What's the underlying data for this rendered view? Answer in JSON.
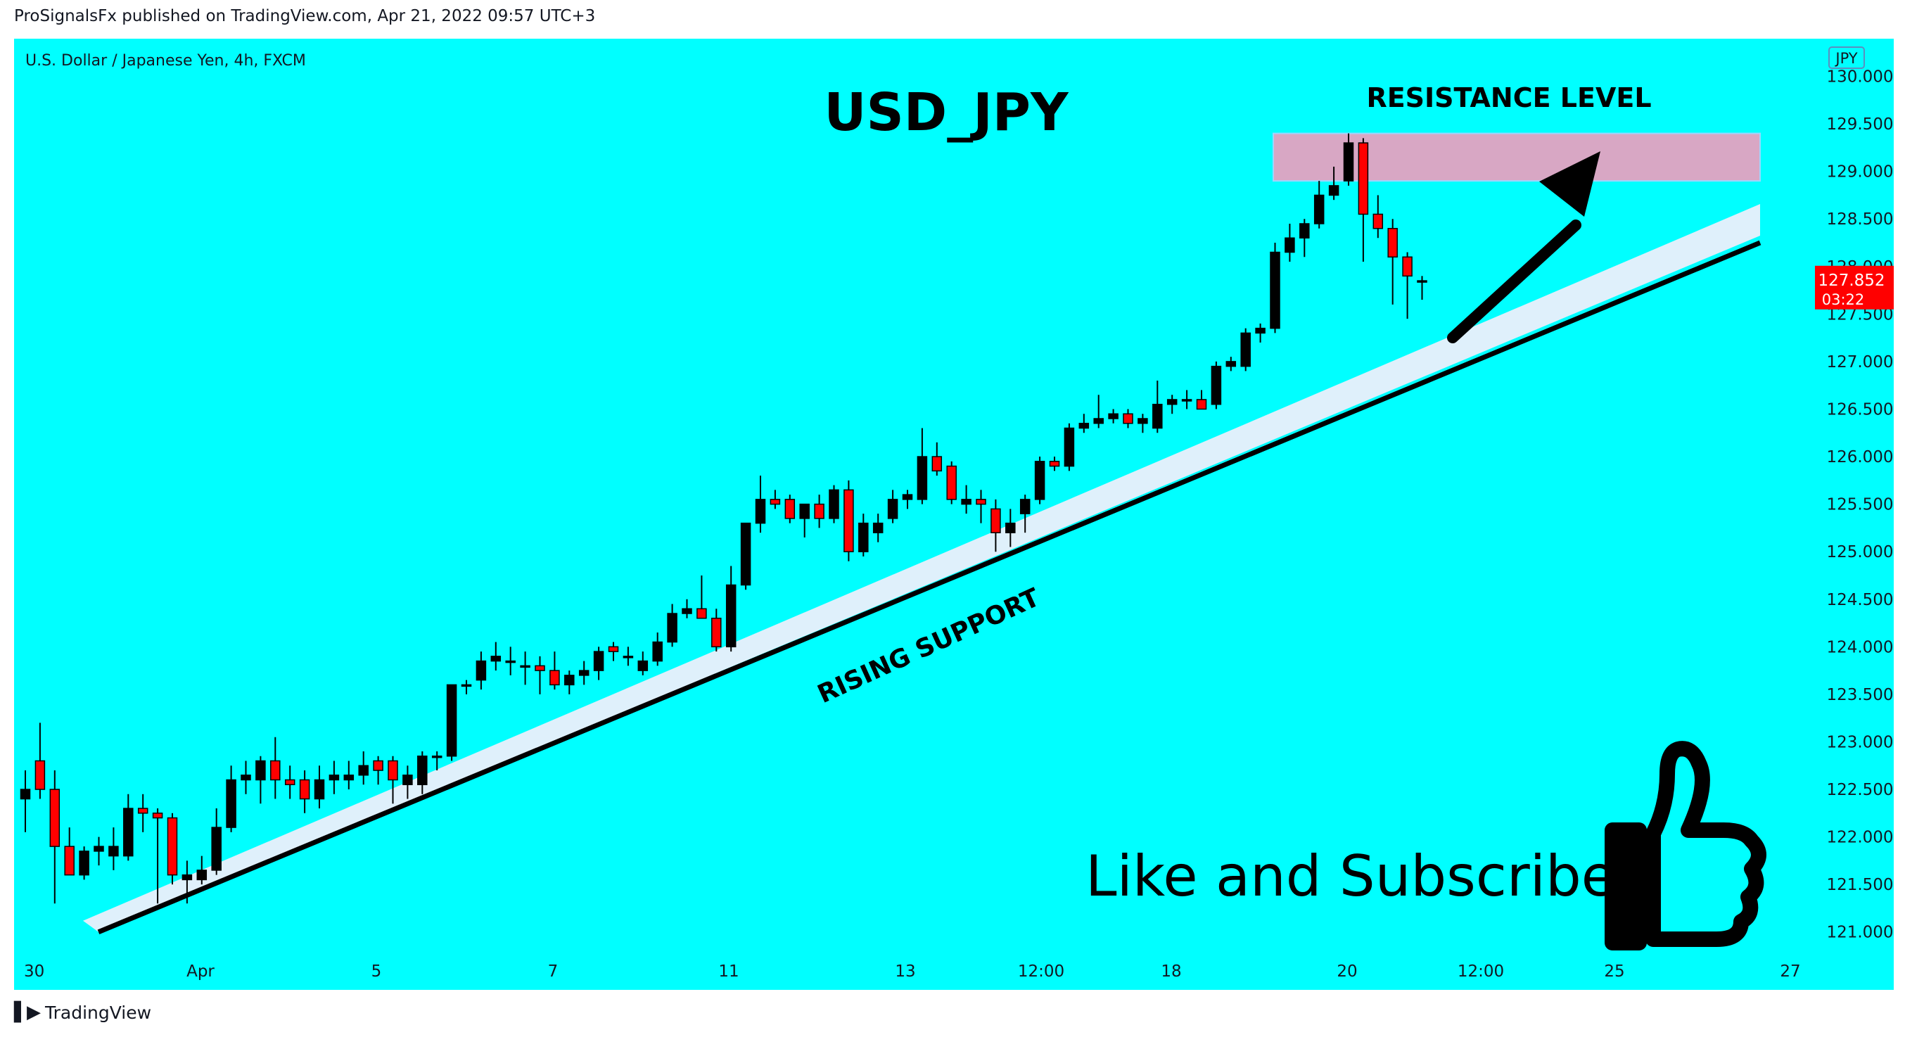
{
  "header": {
    "publisher_line": "ProSignalsFx published on TradingView.com, Apr 21, 2022 09:57 UTC+3"
  },
  "footer": {
    "brand": "TradingView"
  },
  "chart_data": {
    "type": "candlestick",
    "symbol_label": "U.S. Dollar / Japanese Yen, 4h, FXCM",
    "currency_badge": "JPY",
    "title": "USD_JPY",
    "price_axis": {
      "ylim": [
        120.85,
        130.1
      ],
      "ticks": [
        "121.000",
        "121.500",
        "122.000",
        "122.500",
        "123.000",
        "123.500",
        "124.000",
        "124.500",
        "125.000",
        "125.500",
        "126.000",
        "126.500",
        "127.000",
        "127.500",
        "128.000",
        "128.500",
        "129.000",
        "129.500",
        "130.000"
      ]
    },
    "time_axis": {
      "labels": [
        "30",
        "Apr",
        "5",
        "7",
        "11",
        "13",
        "12:00",
        "18",
        "20",
        "12:00",
        "25",
        "27"
      ]
    },
    "last_price": {
      "value": "127.852",
      "countdown": "03:22",
      "color": "#ff0000"
    },
    "colors": {
      "background": "#00ffff",
      "bull_candle": "#000000",
      "bear_candle": "#ff0000",
      "resistance_zone": "#d8a7c4",
      "support_band": "#dff0fb",
      "support_line": "#000000"
    },
    "annotations": {
      "resistance_label": "RESISTANCE LEVEL",
      "resistance_zone": {
        "from": 128.9,
        "to": 129.4
      },
      "support_label": "RISING SUPPORT",
      "support_line": {
        "start_price": 121.0,
        "end_price": 128.25
      },
      "cta": "Like and Subscribe"
    },
    "candles": [
      {
        "o": 122.4,
        "h": 122.7,
        "l": 122.05,
        "c": 122.5
      },
      {
        "o": 122.8,
        "h": 123.2,
        "l": 122.4,
        "c": 122.5
      },
      {
        "o": 122.5,
        "h": 122.7,
        "l": 121.3,
        "c": 121.9
      },
      {
        "o": 121.9,
        "h": 122.1,
        "l": 121.6,
        "c": 121.6
      },
      {
        "o": 121.6,
        "h": 121.9,
        "l": 121.55,
        "c": 121.85
      },
      {
        "o": 121.85,
        "h": 122.0,
        "l": 121.7,
        "c": 121.9
      },
      {
        "o": 121.8,
        "h": 122.1,
        "l": 121.65,
        "c": 121.9
      },
      {
        "o": 121.8,
        "h": 122.45,
        "l": 121.75,
        "c": 122.3
      },
      {
        "o": 122.3,
        "h": 122.45,
        "l": 122.05,
        "c": 122.25
      },
      {
        "o": 122.25,
        "h": 122.3,
        "l": 121.3,
        "c": 122.2
      },
      {
        "o": 122.2,
        "h": 122.25,
        "l": 121.5,
        "c": 121.6
      },
      {
        "o": 121.55,
        "h": 121.75,
        "l": 121.3,
        "c": 121.6
      },
      {
        "o": 121.55,
        "h": 121.8,
        "l": 121.5,
        "c": 121.65
      },
      {
        "o": 121.65,
        "h": 122.3,
        "l": 121.6,
        "c": 122.1
      },
      {
        "o": 122.1,
        "h": 122.75,
        "l": 122.05,
        "c": 122.6
      },
      {
        "o": 122.6,
        "h": 122.8,
        "l": 122.45,
        "c": 122.65
      },
      {
        "o": 122.6,
        "h": 122.85,
        "l": 122.35,
        "c": 122.8
      },
      {
        "o": 122.8,
        "h": 123.05,
        "l": 122.4,
        "c": 122.6
      },
      {
        "o": 122.6,
        "h": 122.75,
        "l": 122.4,
        "c": 122.55
      },
      {
        "o": 122.6,
        "h": 122.7,
        "l": 122.25,
        "c": 122.4
      },
      {
        "o": 122.4,
        "h": 122.75,
        "l": 122.3,
        "c": 122.6
      },
      {
        "o": 122.6,
        "h": 122.8,
        "l": 122.45,
        "c": 122.65
      },
      {
        "o": 122.6,
        "h": 122.8,
        "l": 122.5,
        "c": 122.65
      },
      {
        "o": 122.65,
        "h": 122.9,
        "l": 122.55,
        "c": 122.75
      },
      {
        "o": 122.8,
        "h": 122.85,
        "l": 122.55,
        "c": 122.7
      },
      {
        "o": 122.8,
        "h": 122.85,
        "l": 122.35,
        "c": 122.6
      },
      {
        "o": 122.55,
        "h": 122.75,
        "l": 122.4,
        "c": 122.65
      },
      {
        "o": 122.55,
        "h": 122.9,
        "l": 122.45,
        "c": 122.85
      },
      {
        "o": 122.85,
        "h": 122.9,
        "l": 122.7,
        "c": 122.85
      },
      {
        "o": 122.85,
        "h": 123.6,
        "l": 122.8,
        "c": 123.6
      },
      {
        "o": 123.6,
        "h": 123.65,
        "l": 123.5,
        "c": 123.6
      },
      {
        "o": 123.65,
        "h": 123.95,
        "l": 123.55,
        "c": 123.85
      },
      {
        "o": 123.85,
        "h": 124.05,
        "l": 123.75,
        "c": 123.9
      },
      {
        "o": 123.85,
        "h": 124.0,
        "l": 123.7,
        "c": 123.85
      },
      {
        "o": 123.8,
        "h": 123.95,
        "l": 123.6,
        "c": 123.8
      },
      {
        "o": 123.8,
        "h": 123.9,
        "l": 123.5,
        "c": 123.75
      },
      {
        "o": 123.75,
        "h": 123.95,
        "l": 123.55,
        "c": 123.6
      },
      {
        "o": 123.6,
        "h": 123.75,
        "l": 123.5,
        "c": 123.7
      },
      {
        "o": 123.7,
        "h": 123.85,
        "l": 123.6,
        "c": 123.75
      },
      {
        "o": 123.75,
        "h": 124.0,
        "l": 123.65,
        "c": 123.95
      },
      {
        "o": 124.0,
        "h": 124.05,
        "l": 123.85,
        "c": 123.95
      },
      {
        "o": 123.9,
        "h": 124.0,
        "l": 123.8,
        "c": 123.9
      },
      {
        "o": 123.75,
        "h": 123.95,
        "l": 123.7,
        "c": 123.85
      },
      {
        "o": 123.85,
        "h": 124.15,
        "l": 123.8,
        "c": 124.05
      },
      {
        "o": 124.05,
        "h": 124.45,
        "l": 124.0,
        "c": 124.35
      },
      {
        "o": 124.35,
        "h": 124.5,
        "l": 124.3,
        "c": 124.4
      },
      {
        "o": 124.4,
        "h": 124.75,
        "l": 124.35,
        "c": 124.3
      },
      {
        "o": 124.3,
        "h": 124.4,
        "l": 123.95,
        "c": 124.0
      },
      {
        "o": 124.0,
        "h": 124.85,
        "l": 123.95,
        "c": 124.65
      },
      {
        "o": 124.65,
        "h": 125.3,
        "l": 124.6,
        "c": 125.3
      },
      {
        "o": 125.3,
        "h": 125.8,
        "l": 125.2,
        "c": 125.55
      },
      {
        "o": 125.55,
        "h": 125.65,
        "l": 125.45,
        "c": 125.5
      },
      {
        "o": 125.55,
        "h": 125.6,
        "l": 125.3,
        "c": 125.35
      },
      {
        "o": 125.35,
        "h": 125.5,
        "l": 125.15,
        "c": 125.5
      },
      {
        "o": 125.5,
        "h": 125.6,
        "l": 125.25,
        "c": 125.35
      },
      {
        "o": 125.35,
        "h": 125.7,
        "l": 125.3,
        "c": 125.65
      },
      {
        "o": 125.65,
        "h": 125.75,
        "l": 124.9,
        "c": 125.0
      },
      {
        "o": 125.0,
        "h": 125.4,
        "l": 124.95,
        "c": 125.3
      },
      {
        "o": 125.2,
        "h": 125.4,
        "l": 125.1,
        "c": 125.3
      },
      {
        "o": 125.35,
        "h": 125.65,
        "l": 125.3,
        "c": 125.55
      },
      {
        "o": 125.55,
        "h": 125.65,
        "l": 125.45,
        "c": 125.6
      },
      {
        "o": 125.55,
        "h": 126.3,
        "l": 125.5,
        "c": 126.0
      },
      {
        "o": 126.0,
        "h": 126.15,
        "l": 125.8,
        "c": 125.85
      },
      {
        "o": 125.9,
        "h": 125.95,
        "l": 125.5,
        "c": 125.55
      },
      {
        "o": 125.5,
        "h": 125.7,
        "l": 125.4,
        "c": 125.55
      },
      {
        "o": 125.55,
        "h": 125.65,
        "l": 125.3,
        "c": 125.5
      },
      {
        "o": 125.45,
        "h": 125.55,
        "l": 125.0,
        "c": 125.2
      },
      {
        "o": 125.2,
        "h": 125.45,
        "l": 125.05,
        "c": 125.3
      },
      {
        "o": 125.4,
        "h": 125.6,
        "l": 125.2,
        "c": 125.55
      },
      {
        "o": 125.55,
        "h": 126.0,
        "l": 125.5,
        "c": 125.95
      },
      {
        "o": 125.95,
        "h": 126.0,
        "l": 125.85,
        "c": 125.9
      },
      {
        "o": 125.9,
        "h": 126.35,
        "l": 125.85,
        "c": 126.3
      },
      {
        "o": 126.3,
        "h": 126.45,
        "l": 126.25,
        "c": 126.35
      },
      {
        "o": 126.35,
        "h": 126.65,
        "l": 126.3,
        "c": 126.4
      },
      {
        "o": 126.4,
        "h": 126.5,
        "l": 126.35,
        "c": 126.45
      },
      {
        "o": 126.45,
        "h": 126.5,
        "l": 126.3,
        "c": 126.35
      },
      {
        "o": 126.35,
        "h": 126.45,
        "l": 126.25,
        "c": 126.4
      },
      {
        "o": 126.3,
        "h": 126.8,
        "l": 126.25,
        "c": 126.55
      },
      {
        "o": 126.55,
        "h": 126.65,
        "l": 126.45,
        "c": 126.6
      },
      {
        "o": 126.6,
        "h": 126.7,
        "l": 126.5,
        "c": 126.6
      },
      {
        "o": 126.6,
        "h": 126.7,
        "l": 126.5,
        "c": 126.5
      },
      {
        "o": 126.55,
        "h": 127.0,
        "l": 126.5,
        "c": 126.95
      },
      {
        "o": 126.95,
        "h": 127.05,
        "l": 126.9,
        "c": 127.0
      },
      {
        "o": 126.95,
        "h": 127.35,
        "l": 126.9,
        "c": 127.3
      },
      {
        "o": 127.3,
        "h": 127.4,
        "l": 127.2,
        "c": 127.35
      },
      {
        "o": 127.35,
        "h": 128.25,
        "l": 127.3,
        "c": 128.15
      },
      {
        "o": 128.15,
        "h": 128.45,
        "l": 128.05,
        "c": 128.3
      },
      {
        "o": 128.3,
        "h": 128.5,
        "l": 128.1,
        "c": 128.45
      },
      {
        "o": 128.45,
        "h": 128.9,
        "l": 128.4,
        "c": 128.75
      },
      {
        "o": 128.75,
        "h": 129.05,
        "l": 128.7,
        "c": 128.85
      },
      {
        "o": 128.9,
        "h": 129.4,
        "l": 128.85,
        "c": 129.3
      },
      {
        "o": 129.3,
        "h": 129.35,
        "l": 128.05,
        "c": 128.55
      },
      {
        "o": 128.55,
        "h": 128.75,
        "l": 128.3,
        "c": 128.4
      },
      {
        "o": 128.4,
        "h": 128.5,
        "l": 127.6,
        "c": 128.1
      },
      {
        "o": 128.1,
        "h": 128.15,
        "l": 127.45,
        "c": 127.9
      },
      {
        "o": 127.85,
        "h": 127.9,
        "l": 127.65,
        "c": 127.85
      }
    ]
  }
}
